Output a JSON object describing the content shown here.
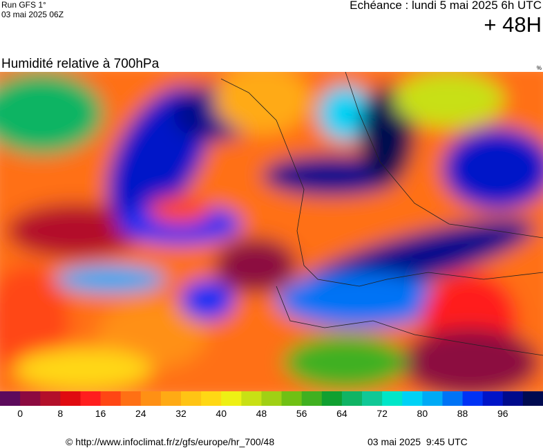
{
  "header": {
    "run": "Run GFS 1°",
    "run_date": "03 mai 2025 06Z",
    "forecast": "Echéance : lundi 5 mai 2025 6h UTC",
    "lead": "+ 48H",
    "title": "Humidité relative à 700hPa",
    "unit": "%"
  },
  "legend": {
    "colors": [
      "#5c0a5c",
      "#8c0a40",
      "#b3102a",
      "#e00a10",
      "#ff1e1e",
      "#ff4614",
      "#ff7014",
      "#ff9014",
      "#ffaa14",
      "#ffc414",
      "#ffd814",
      "#eef014",
      "#c8e014",
      "#a0d014",
      "#70c014",
      "#40b020",
      "#10a030",
      "#10b464",
      "#10c896",
      "#00e6c8",
      "#00d2f5",
      "#00aaf5",
      "#0073f5",
      "#0032f5",
      "#0014c8",
      "#000a8c",
      "#000a50"
    ],
    "ticks": [
      0,
      8,
      16,
      24,
      32,
      40,
      48,
      56,
      64,
      72,
      80,
      88,
      96
    ]
  },
  "footer": {
    "source": "© http://www.infoclimat.fr/z/gfs/europe/hr_700/48",
    "issued": "03 mai 2025  9:45 UTC"
  }
}
